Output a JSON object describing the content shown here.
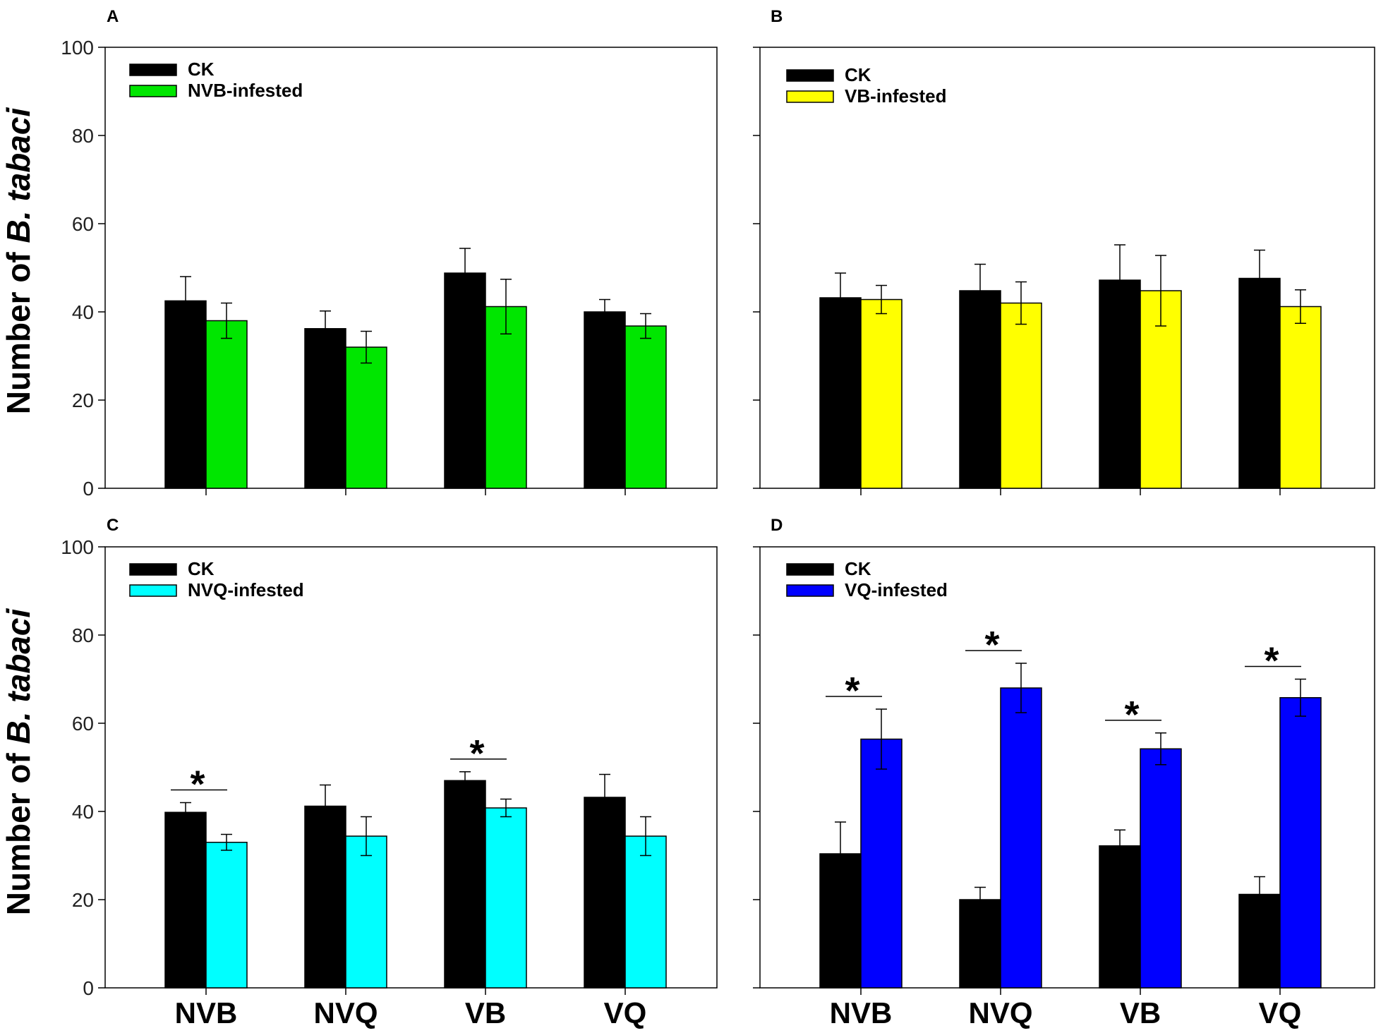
{
  "figure": {
    "ylabel_prefix": "Number of ",
    "ylabel_species": "B. tabaci",
    "categories": [
      "NVB",
      "NVQ",
      "VB",
      "VQ"
    ],
    "ylim": [
      0,
      100
    ],
    "yticks": [
      "0",
      "20",
      "40",
      "60",
      "80",
      "100"
    ]
  },
  "chart_data": [
    {
      "panel": "A",
      "type": "bar",
      "categories": [
        "NVB",
        "NVQ",
        "VB",
        "VQ"
      ],
      "ylim": [
        0,
        100
      ],
      "ylabel": "Number of B. tabaci",
      "series": [
        {
          "name": "CK",
          "color": "#000000",
          "values": [
            42.5,
            36.2,
            48.8,
            40.0
          ],
          "errors": [
            5.5,
            4.0,
            5.6,
            2.8
          ]
        },
        {
          "name": "NVB-infested",
          "color": "#00e600",
          "values": [
            38.0,
            32.0,
            41.2,
            36.8
          ],
          "errors": [
            4.0,
            3.6,
            6.2,
            2.8
          ]
        }
      ],
      "significant": []
    },
    {
      "panel": "B",
      "type": "bar",
      "categories": [
        "NVB",
        "NVQ",
        "VB",
        "VQ"
      ],
      "ylim": [
        0,
        100
      ],
      "series": [
        {
          "name": "CK",
          "color": "#000000",
          "values": [
            43.2,
            44.8,
            47.2,
            47.6
          ],
          "errors": [
            5.6,
            6.0,
            8.0,
            6.4
          ]
        },
        {
          "name": "VB-infested",
          "color": "#ffff00",
          "values": [
            42.8,
            42.0,
            44.8,
            41.2
          ],
          "errors": [
            3.2,
            4.8,
            8.0,
            3.8
          ]
        }
      ],
      "significant": []
    },
    {
      "panel": "C",
      "type": "bar",
      "categories": [
        "NVB",
        "NVQ",
        "VB",
        "VQ"
      ],
      "ylim": [
        0,
        100
      ],
      "ylabel": "Number of B. tabaci",
      "series": [
        {
          "name": "CK",
          "color": "#000000",
          "values": [
            39.8,
            41.2,
            47.0,
            43.2
          ],
          "errors": [
            2.2,
            4.8,
            2.0,
            5.2
          ]
        },
        {
          "name": "NVQ-infested",
          "color": "#00ffff",
          "values": [
            33.0,
            34.4,
            40.8,
            34.4
          ],
          "errors": [
            1.8,
            4.4,
            2.0,
            4.4
          ]
        }
      ],
      "significant": [
        "NVB",
        "VB"
      ]
    },
    {
      "panel": "D",
      "type": "bar",
      "categories": [
        "NVB",
        "NVQ",
        "VB",
        "VQ"
      ],
      "ylim": [
        0,
        100
      ],
      "series": [
        {
          "name": "CK",
          "color": "#000000",
          "values": [
            30.4,
            20.0,
            32.2,
            21.2
          ],
          "errors": [
            7.2,
            2.8,
            3.6,
            4.0
          ]
        },
        {
          "name": "VQ-infested",
          "color": "#0000ff",
          "values": [
            56.4,
            68.0,
            54.2,
            65.8
          ],
          "errors": [
            6.8,
            5.6,
            3.6,
            4.2
          ]
        }
      ],
      "significant": [
        "NVB",
        "NVQ",
        "VB",
        "VQ"
      ]
    }
  ]
}
